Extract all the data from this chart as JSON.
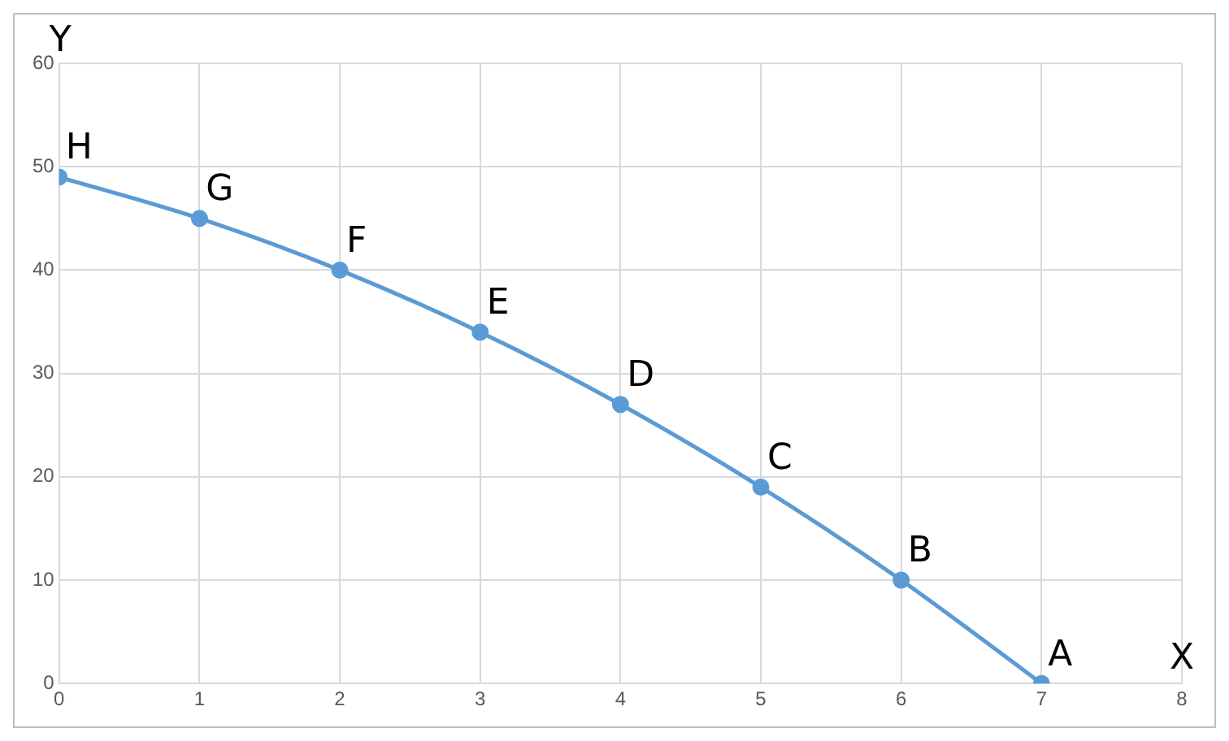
{
  "chart_data": {
    "type": "line",
    "xlabel": "X",
    "ylabel": "Y",
    "x": [
      0,
      1,
      2,
      3,
      4,
      5,
      6,
      7
    ],
    "series": [
      {
        "color": "#5b9bd5",
        "values": [
          49,
          45,
          40,
          34,
          27,
          19,
          10,
          0
        ]
      }
    ],
    "xlim": [
      0,
      8
    ],
    "xticks": [
      0,
      1,
      2,
      3,
      4,
      5,
      6,
      7,
      8
    ],
    "ylim": [
      0,
      60
    ],
    "yticks": [
      0,
      10,
      20,
      30,
      40,
      50,
      60
    ],
    "grid": true,
    "legend": false,
    "marker": "circle",
    "line_style": "solid",
    "annotations": [
      {
        "text": "H",
        "x": 0,
        "y": 49
      },
      {
        "text": "G",
        "x": 1,
        "y": 45
      },
      {
        "text": "F",
        "x": 2,
        "y": 40
      },
      {
        "text": "E",
        "x": 3,
        "y": 34
      },
      {
        "text": "D",
        "x": 4,
        "y": 27
      },
      {
        "text": "C",
        "x": 5,
        "y": 19
      },
      {
        "text": "B",
        "x": 6,
        "y": 10
      },
      {
        "text": "A",
        "x": 7,
        "y": 0
      }
    ]
  }
}
